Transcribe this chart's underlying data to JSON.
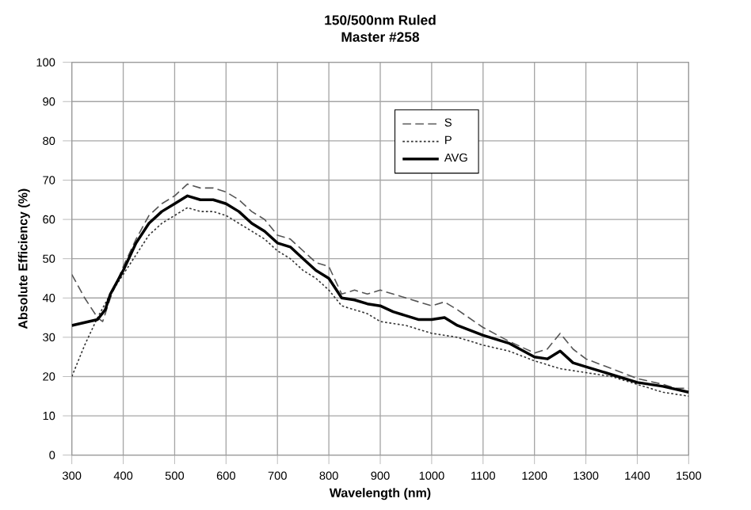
{
  "chart_data": {
    "type": "line",
    "title": "150/500nm Ruled",
    "subtitle": "Master #258",
    "xlabel": "Wavelength (nm)",
    "ylabel": "Absolute Efficiency (%)",
    "xlim": [
      300,
      1500
    ],
    "ylim": [
      0,
      100
    ],
    "xticks": [
      300,
      400,
      500,
      600,
      700,
      800,
      900,
      1000,
      1100,
      1200,
      1300,
      1400,
      1500
    ],
    "yticks": [
      0,
      10,
      20,
      30,
      40,
      50,
      60,
      70,
      80,
      90,
      100
    ],
    "grid": true,
    "legend": "top right",
    "series": [
      {
        "name": "S",
        "color": "#555555",
        "line_style": "dashed",
        "x": [
          300,
          325,
          350,
          360,
          375,
          400,
          425,
          450,
          475,
          500,
          525,
          550,
          575,
          600,
          625,
          650,
          675,
          700,
          725,
          750,
          775,
          800,
          825,
          850,
          875,
          900,
          925,
          950,
          975,
          1000,
          1025,
          1050,
          1100,
          1150,
          1200,
          1225,
          1250,
          1275,
          1300,
          1350,
          1400,
          1450,
          1475,
          1500
        ],
        "values": [
          46,
          40,
          35,
          34,
          40,
          48,
          55,
          61,
          64,
          66,
          69,
          68,
          68,
          67,
          65,
          62,
          60,
          56,
          55,
          52,
          49,
          48,
          41,
          42,
          41,
          42,
          41,
          40,
          39,
          38,
          39,
          37,
          32.5,
          29,
          26,
          27,
          31,
          27,
          24.5,
          22,
          19.5,
          18,
          17,
          17
        ]
      },
      {
        "name": "P",
        "color": "#333333",
        "line_style": "dotted",
        "x": [
          300,
          325,
          350,
          375,
          400,
          425,
          450,
          475,
          500,
          525,
          550,
          575,
          600,
          625,
          650,
          675,
          700,
          725,
          750,
          775,
          800,
          825,
          850,
          875,
          900,
          950,
          1000,
          1050,
          1100,
          1150,
          1200,
          1250,
          1300,
          1350,
          1400,
          1450,
          1500
        ],
        "values": [
          20,
          28,
          35,
          41,
          46,
          51,
          56,
          59,
          61,
          63,
          62,
          62,
          61,
          59,
          57,
          55,
          52,
          50,
          47,
          45,
          42,
          38,
          37,
          36,
          34,
          33,
          31,
          30,
          28,
          26.5,
          24,
          22,
          21,
          20,
          18,
          16,
          15
        ]
      },
      {
        "name": "AVG",
        "color": "#000000",
        "line_style": "solid",
        "x": [
          300,
          350,
          365,
          375,
          400,
          425,
          450,
          475,
          500,
          525,
          550,
          575,
          600,
          625,
          650,
          675,
          700,
          725,
          750,
          775,
          800,
          825,
          850,
          875,
          900,
          925,
          950,
          975,
          1000,
          1025,
          1050,
          1100,
          1150,
          1200,
          1225,
          1250,
          1275,
          1300,
          1350,
          1400,
          1450,
          1500
        ],
        "values": [
          33,
          34.5,
          37,
          41,
          47,
          54,
          59,
          62,
          64,
          66,
          65,
          65,
          64,
          62,
          59,
          57,
          54,
          53,
          50,
          47,
          45,
          40,
          39.5,
          38.5,
          38,
          36.5,
          35.5,
          34.5,
          34.5,
          35,
          33,
          30.5,
          28.5,
          25,
          24.5,
          26.5,
          23.5,
          22.5,
          20.5,
          18.5,
          17.5,
          16
        ]
      }
    ]
  }
}
